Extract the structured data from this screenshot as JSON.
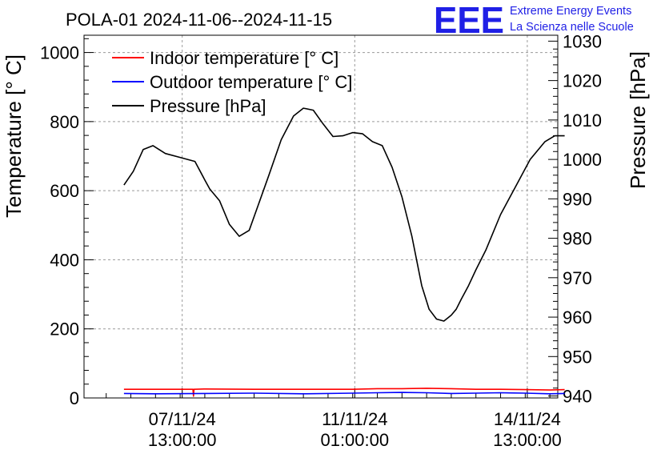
{
  "title": "POLA-01 2024-11-06--2024-11-15",
  "logo": {
    "letters": "EEE",
    "line1": "Extreme Energy Events",
    "line2": "La Scienza nelle Scuole",
    "color": "#1f1fe6"
  },
  "chart_data": {
    "type": "line",
    "title": "POLA-01 2024-11-06--2024-11-15",
    "xlabel": "",
    "ylabel_left": "Temperature [° C]",
    "ylabel_right": "Pressure [hPa]",
    "x_unit": "days since 2024-11-06 00:00",
    "xlim": [
      -0.45,
      9.16
    ],
    "ylim_left": [
      0,
      1050
    ],
    "ylim_right": [
      939.5,
      1031.5
    ],
    "left_ticks": [
      "0",
      "200",
      "400",
      "600",
      "800",
      "1000"
    ],
    "right_ticks": [
      "940",
      "950",
      "960",
      "970",
      "980",
      "990",
      "1000",
      "1010",
      "1020",
      "1030"
    ],
    "x_ticks": [
      {
        "date": "07/11/24",
        "time": "13:00:00",
        "x": 1.5417
      },
      {
        "date": "11/11/24",
        "time": "01:00:00",
        "x": 5.0417
      },
      {
        "date": "14/11/24",
        "time": "13:00:00",
        "x": 8.5417
      }
    ],
    "grid": true,
    "legend_position": "top-left",
    "series": [
      {
        "name": "Indoor temperature [° C]",
        "color": "#ff0000",
        "axis": "left",
        "x": [
          0.36,
          1.0,
          1.5,
          1.76,
          1.77,
          1.78,
          2.0,
          3.0,
          4.0,
          4.5,
          5.0,
          5.5,
          6.0,
          6.5,
          7.0,
          7.5,
          8.0,
          8.5,
          9.0,
          9.3
        ],
        "y": [
          25,
          25,
          25,
          25,
          5,
          25,
          26,
          25,
          25,
          25,
          25,
          27,
          27,
          28,
          27,
          25,
          25,
          24,
          23,
          24
        ]
      },
      {
        "name": "Outdoor temperature [° C]",
        "color": "#0000ff",
        "axis": "left",
        "x": [
          0.36,
          1.0,
          2.0,
          3.0,
          4.0,
          5.0,
          5.5,
          6.0,
          6.5,
          7.0,
          7.5,
          8.0,
          8.5,
          9.0,
          9.3
        ],
        "y": [
          13,
          12,
          13,
          14,
          12,
          14,
          15,
          16,
          15,
          13,
          14,
          15,
          14,
          12,
          13
        ]
      },
      {
        "name": "Pressure [hPa]",
        "color": "#000000",
        "axis": "right",
        "x": [
          0.36,
          0.55,
          0.75,
          0.95,
          1.2,
          1.5,
          1.8,
          2.0,
          2.1,
          2.3,
          2.5,
          2.7,
          2.9,
          3.1,
          3.3,
          3.55,
          3.8,
          4.0,
          4.2,
          4.4,
          4.6,
          4.8,
          5.0,
          5.2,
          5.4,
          5.6,
          5.8,
          6.0,
          6.2,
          6.4,
          6.55,
          6.7,
          6.85,
          7.0,
          7.1,
          7.2,
          7.35,
          7.5,
          7.7,
          8.0,
          8.3,
          8.6,
          8.9,
          9.1,
          9.3
        ],
        "y": [
          993.5,
          997,
          1002.5,
          1003.5,
          1001.5,
          1000.5,
          999.5,
          994.8,
          992.5,
          989.5,
          983.5,
          980.5,
          982,
          989,
          996,
          1005,
          1011,
          1013,
          1012.5,
          1009,
          1005.8,
          1006,
          1006.8,
          1006.5,
          1004.5,
          1003.5,
          998,
          990.5,
          980.5,
          968,
          962,
          959.5,
          959,
          960.5,
          962,
          964.5,
          968,
          972,
          977,
          986,
          993,
          1000,
          1004.5,
          1006,
          1006
        ]
      }
    ]
  }
}
